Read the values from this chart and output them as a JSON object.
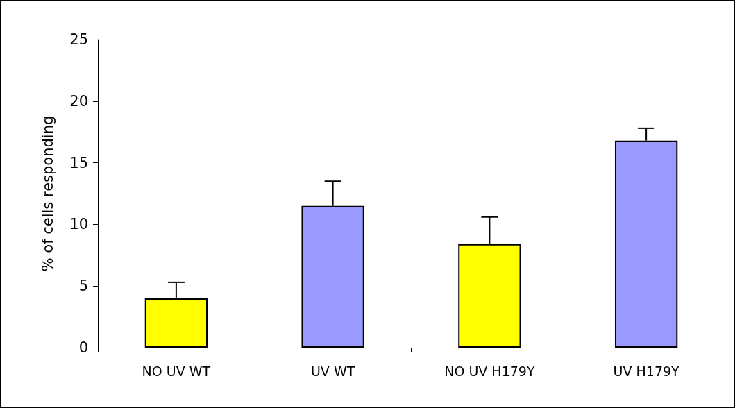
{
  "chart_data": {
    "type": "bar",
    "ylabel": "% of cells responding",
    "categories": [
      "NO UV WT",
      "UV WT",
      "NO UV H179Y",
      "UV H179Y"
    ],
    "values": [
      4.0,
      11.5,
      8.4,
      16.8
    ],
    "colors": [
      "#ffff00",
      "#9999ff",
      "#ffff00",
      "#9999ff"
    ],
    "errors": [
      [
        4.0,
        5.3
      ],
      [
        11.5,
        13.5
      ],
      [
        8.4,
        10.6
      ],
      [
        16.8,
        17.8
      ]
    ],
    "ylim": [
      0,
      25
    ],
    "yticks": [
      0,
      5,
      10,
      15,
      20,
      25
    ],
    "grid": false
  }
}
